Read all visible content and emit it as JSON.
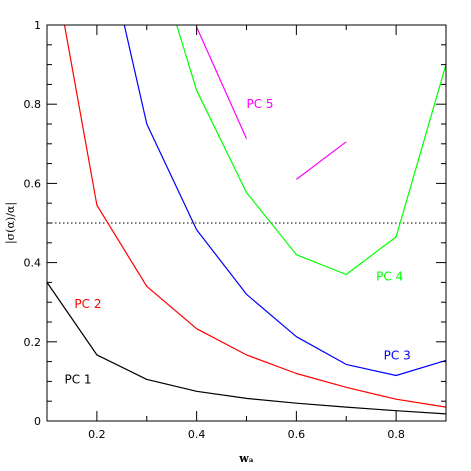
{
  "chart_data": {
    "type": "line",
    "xlabel": "wₐ",
    "ylabel": "|σ(α)/α|",
    "xlim": [
      0.1,
      0.9
    ],
    "ylim": [
      0,
      1
    ],
    "x_ticks": [
      0.2,
      0.4,
      0.6,
      0.8
    ],
    "x_tick_labels": [
      "0.2",
      "0.4",
      "0.6",
      "0.8"
    ],
    "y_ticks": [
      0,
      0.2,
      0.4,
      0.6,
      0.8,
      1
    ],
    "y_tick_labels": [
      "0",
      "0.2",
      "0.4",
      "0.6",
      "0.8",
      "1"
    ],
    "grid": false,
    "reference_line": {
      "y": 0.5,
      "style": "dotted",
      "color": "#000000"
    },
    "series": [
      {
        "name": "PC 1",
        "color": "#000000",
        "label_at": [
          0.135,
          0.095
        ],
        "segments": [
          [
            [
              0.1,
              0.35
            ],
            [
              0.2,
              0.167
            ],
            [
              0.3,
              0.105
            ],
            [
              0.4,
              0.075
            ],
            [
              0.5,
              0.057
            ],
            [
              0.6,
              0.045
            ],
            [
              0.7,
              0.035
            ],
            [
              0.8,
              0.026
            ],
            [
              0.9,
              0.018
            ]
          ]
        ]
      },
      {
        "name": "PC 2",
        "color": "#ff0000",
        "label_at": [
          0.155,
          0.285
        ],
        "segments": [
          [
            [
              0.135,
              1.0
            ],
            [
              0.2,
              0.545
            ],
            [
              0.3,
              0.34
            ],
            [
              0.4,
              0.233
            ],
            [
              0.5,
              0.167
            ],
            [
              0.6,
              0.12
            ],
            [
              0.7,
              0.085
            ],
            [
              0.8,
              0.055
            ],
            [
              0.9,
              0.035
            ]
          ]
        ]
      },
      {
        "name": "PC 3",
        "color": "#0000ff",
        "label_at": [
          0.775,
          0.155
        ],
        "segments": [
          [
            [
              0.255,
              1.0
            ],
            [
              0.3,
              0.75
            ],
            [
              0.4,
              0.483
            ],
            [
              0.5,
              0.32
            ],
            [
              0.6,
              0.213
            ],
            [
              0.7,
              0.143
            ],
            [
              0.8,
              0.115
            ],
            [
              0.9,
              0.153
            ]
          ]
        ]
      },
      {
        "name": "PC 4",
        "color": "#00ff00",
        "label_at": [
          0.76,
          0.355
        ],
        "segments": [
          [
            [
              0.36,
              1.0
            ],
            [
              0.4,
              0.835
            ],
            [
              0.5,
              0.577
            ],
            [
              0.6,
              0.42
            ],
            [
              0.7,
              0.37
            ],
            [
              0.8,
              0.465
            ],
            [
              0.9,
              0.9
            ]
          ]
        ]
      },
      {
        "name": "PC 5",
        "color": "#ff00ff",
        "label_at": [
          0.5,
          0.79
        ],
        "segments": [
          [
            [
              0.4,
              0.995
            ],
            [
              0.5,
              0.713
            ]
          ],
          [
            [
              0.6,
              0.61
            ],
            [
              0.7,
              0.705
            ]
          ]
        ]
      }
    ]
  }
}
